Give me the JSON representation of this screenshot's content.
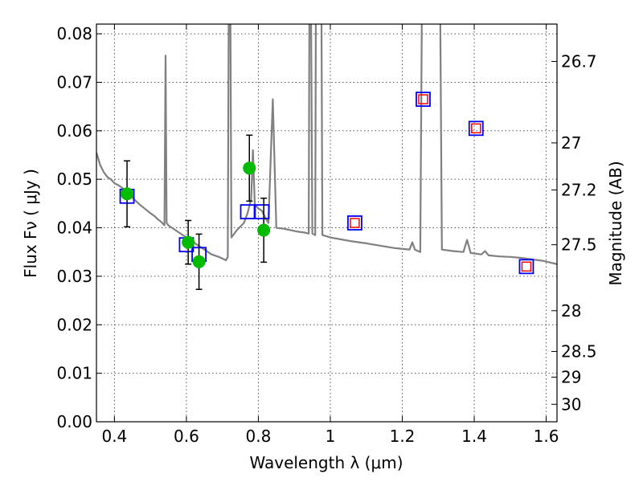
{
  "chart_data": {
    "type": "scatter",
    "xlabel": "Wavelength  λ (μm)",
    "ylabel": "Flux  Fν ( μJy )",
    "y2label": "Magnitude (AB)",
    "xlim": [
      0.35,
      1.63
    ],
    "ylim": [
      0.0,
      0.082
    ],
    "grid": true,
    "x_ticks": [
      {
        "value": 0.4,
        "label": "0.4"
      },
      {
        "value": 0.6,
        "label": "0.6"
      },
      {
        "value": 0.8,
        "label": "0.8"
      },
      {
        "value": 1.0,
        "label": "1"
      },
      {
        "value": 1.2,
        "label": "1.2"
      },
      {
        "value": 1.4,
        "label": "1.4"
      },
      {
        "value": 1.6,
        "label": "1.6"
      }
    ],
    "y_ticks": [
      {
        "value": 0.0,
        "label": "0.00"
      },
      {
        "value": 0.01,
        "label": "0.01"
      },
      {
        "value": 0.02,
        "label": "0.02"
      },
      {
        "value": 0.03,
        "label": "0.03"
      },
      {
        "value": 0.04,
        "label": "0.04"
      },
      {
        "value": 0.05,
        "label": "0.05"
      },
      {
        "value": 0.06,
        "label": "0.06"
      },
      {
        "value": 0.07,
        "label": "0.07"
      },
      {
        "value": 0.08,
        "label": "0.08"
      }
    ],
    "y2_ticks": [
      {
        "flux": 0.0743,
        "label": "26.7"
      },
      {
        "flux": 0.0575,
        "label": "27"
      },
      {
        "flux": 0.0478,
        "label": "27.2"
      },
      {
        "flux": 0.0365,
        "label": "27.5"
      },
      {
        "flux": 0.0229,
        "label": "28"
      },
      {
        "flux": 0.0145,
        "label": "28.5"
      },
      {
        "flux": 0.0092,
        "label": "29"
      },
      {
        "flux": 0.0036,
        "label": "30"
      }
    ],
    "series": [
      {
        "kind": "model_spectrum",
        "color": "#808080",
        "points": [
          [
            0.35,
            0.0555
          ],
          [
            0.36,
            0.053
          ],
          [
            0.37,
            0.0515
          ],
          [
            0.38,
            0.0505
          ],
          [
            0.39,
            0.05
          ],
          [
            0.4,
            0.0492
          ],
          [
            0.41,
            0.0488
          ],
          [
            0.42,
            0.0483
          ],
          [
            0.43,
            0.0478
          ],
          [
            0.44,
            0.047
          ],
          [
            0.45,
            0.0462
          ],
          [
            0.46,
            0.0455
          ],
          [
            0.47,
            0.0448
          ],
          [
            0.48,
            0.0442
          ],
          [
            0.49,
            0.0436
          ],
          [
            0.5,
            0.043
          ],
          [
            0.51,
            0.0425
          ],
          [
            0.52,
            0.0418
          ],
          [
            0.53,
            0.0412
          ],
          [
            0.539,
            0.0405
          ],
          [
            0.542,
            0.0755
          ],
          [
            0.545,
            0.041
          ],
          [
            0.55,
            0.0405
          ],
          [
            0.57,
            0.0395
          ],
          [
            0.59,
            0.0385
          ],
          [
            0.61,
            0.0375
          ],
          [
            0.63,
            0.0365
          ],
          [
            0.65,
            0.0355
          ],
          [
            0.67,
            0.0345
          ],
          [
            0.69,
            0.034
          ],
          [
            0.71,
            0.0333
          ],
          [
            0.715,
            0.034
          ],
          [
            0.718,
            0.09
          ],
          [
            0.722,
            0.09
          ],
          [
            0.725,
            0.038
          ],
          [
            0.74,
            0.0395
          ],
          [
            0.76,
            0.041
          ],
          [
            0.77,
            0.043
          ],
          [
            0.78,
            0.046
          ],
          [
            0.785,
            0.056
          ],
          [
            0.79,
            0.0448
          ],
          [
            0.8,
            0.044
          ],
          [
            0.81,
            0.0435
          ],
          [
            0.82,
            0.042
          ],
          [
            0.828,
            0.041
          ],
          [
            0.84,
            0.0665
          ],
          [
            0.85,
            0.04
          ],
          [
            0.87,
            0.0398
          ],
          [
            0.89,
            0.0395
          ],
          [
            0.91,
            0.0392
          ],
          [
            0.93,
            0.039
          ],
          [
            0.94,
            0.0388
          ],
          [
            0.942,
            0.09
          ],
          [
            0.946,
            0.09
          ],
          [
            0.95,
            0.0388
          ],
          [
            0.958,
            0.0385
          ],
          [
            0.96,
            0.09
          ],
          [
            0.975,
            0.09
          ],
          [
            0.978,
            0.0385
          ],
          [
            1.0,
            0.038
          ],
          [
            1.03,
            0.0376
          ],
          [
            1.06,
            0.0372
          ],
          [
            1.1,
            0.0368
          ],
          [
            1.14,
            0.0363
          ],
          [
            1.18,
            0.0358
          ],
          [
            1.22,
            0.0355
          ],
          [
            1.228,
            0.037
          ],
          [
            1.235,
            0.0355
          ],
          [
            1.25,
            0.035
          ],
          [
            1.255,
            0.09
          ],
          [
            1.305,
            0.09
          ],
          [
            1.31,
            0.0355
          ],
          [
            1.34,
            0.0352
          ],
          [
            1.37,
            0.035
          ],
          [
            1.38,
            0.0375
          ],
          [
            1.39,
            0.0348
          ],
          [
            1.42,
            0.0345
          ],
          [
            1.43,
            0.0352
          ],
          [
            1.44,
            0.0343
          ],
          [
            1.47,
            0.0341
          ],
          [
            1.5,
            0.034
          ],
          [
            1.53,
            0.0338
          ],
          [
            1.56,
            0.0335
          ],
          [
            1.59,
            0.0332
          ],
          [
            1.63,
            0.0325
          ]
        ]
      },
      {
        "kind": "observed_photometry",
        "color": "#00bb00",
        "points": [
          {
            "x": 0.435,
            "y": 0.047,
            "err": 0.0068
          },
          {
            "x": 0.605,
            "y": 0.037,
            "err": 0.0045
          },
          {
            "x": 0.635,
            "y": 0.033,
            "err": 0.0057
          },
          {
            "x": 0.775,
            "y": 0.0523,
            "err": 0.0068
          },
          {
            "x": 0.815,
            "y": 0.0395,
            "err": 0.0066
          }
        ]
      },
      {
        "kind": "model_photometry",
        "color": "#0000ff",
        "points": [
          {
            "x": 0.435,
            "y": 0.0465
          },
          {
            "x": 0.6,
            "y": 0.0365
          },
          {
            "x": 0.635,
            "y": 0.0345
          },
          {
            "x": 0.77,
            "y": 0.0433
          },
          {
            "x": 0.81,
            "y": 0.0433
          },
          {
            "x": 1.068,
            "y": 0.041
          },
          {
            "x": 1.258,
            "y": 0.0665
          },
          {
            "x": 1.405,
            "y": 0.0605
          },
          {
            "x": 1.545,
            "y": 0.032
          }
        ]
      },
      {
        "kind": "upper_limits",
        "color": "#ff0000",
        "points": [
          {
            "x": 1.068,
            "y": 0.041
          },
          {
            "x": 1.258,
            "y": 0.0665
          },
          {
            "x": 1.405,
            "y": 0.0605
          },
          {
            "x": 1.545,
            "y": 0.032
          }
        ]
      }
    ]
  }
}
